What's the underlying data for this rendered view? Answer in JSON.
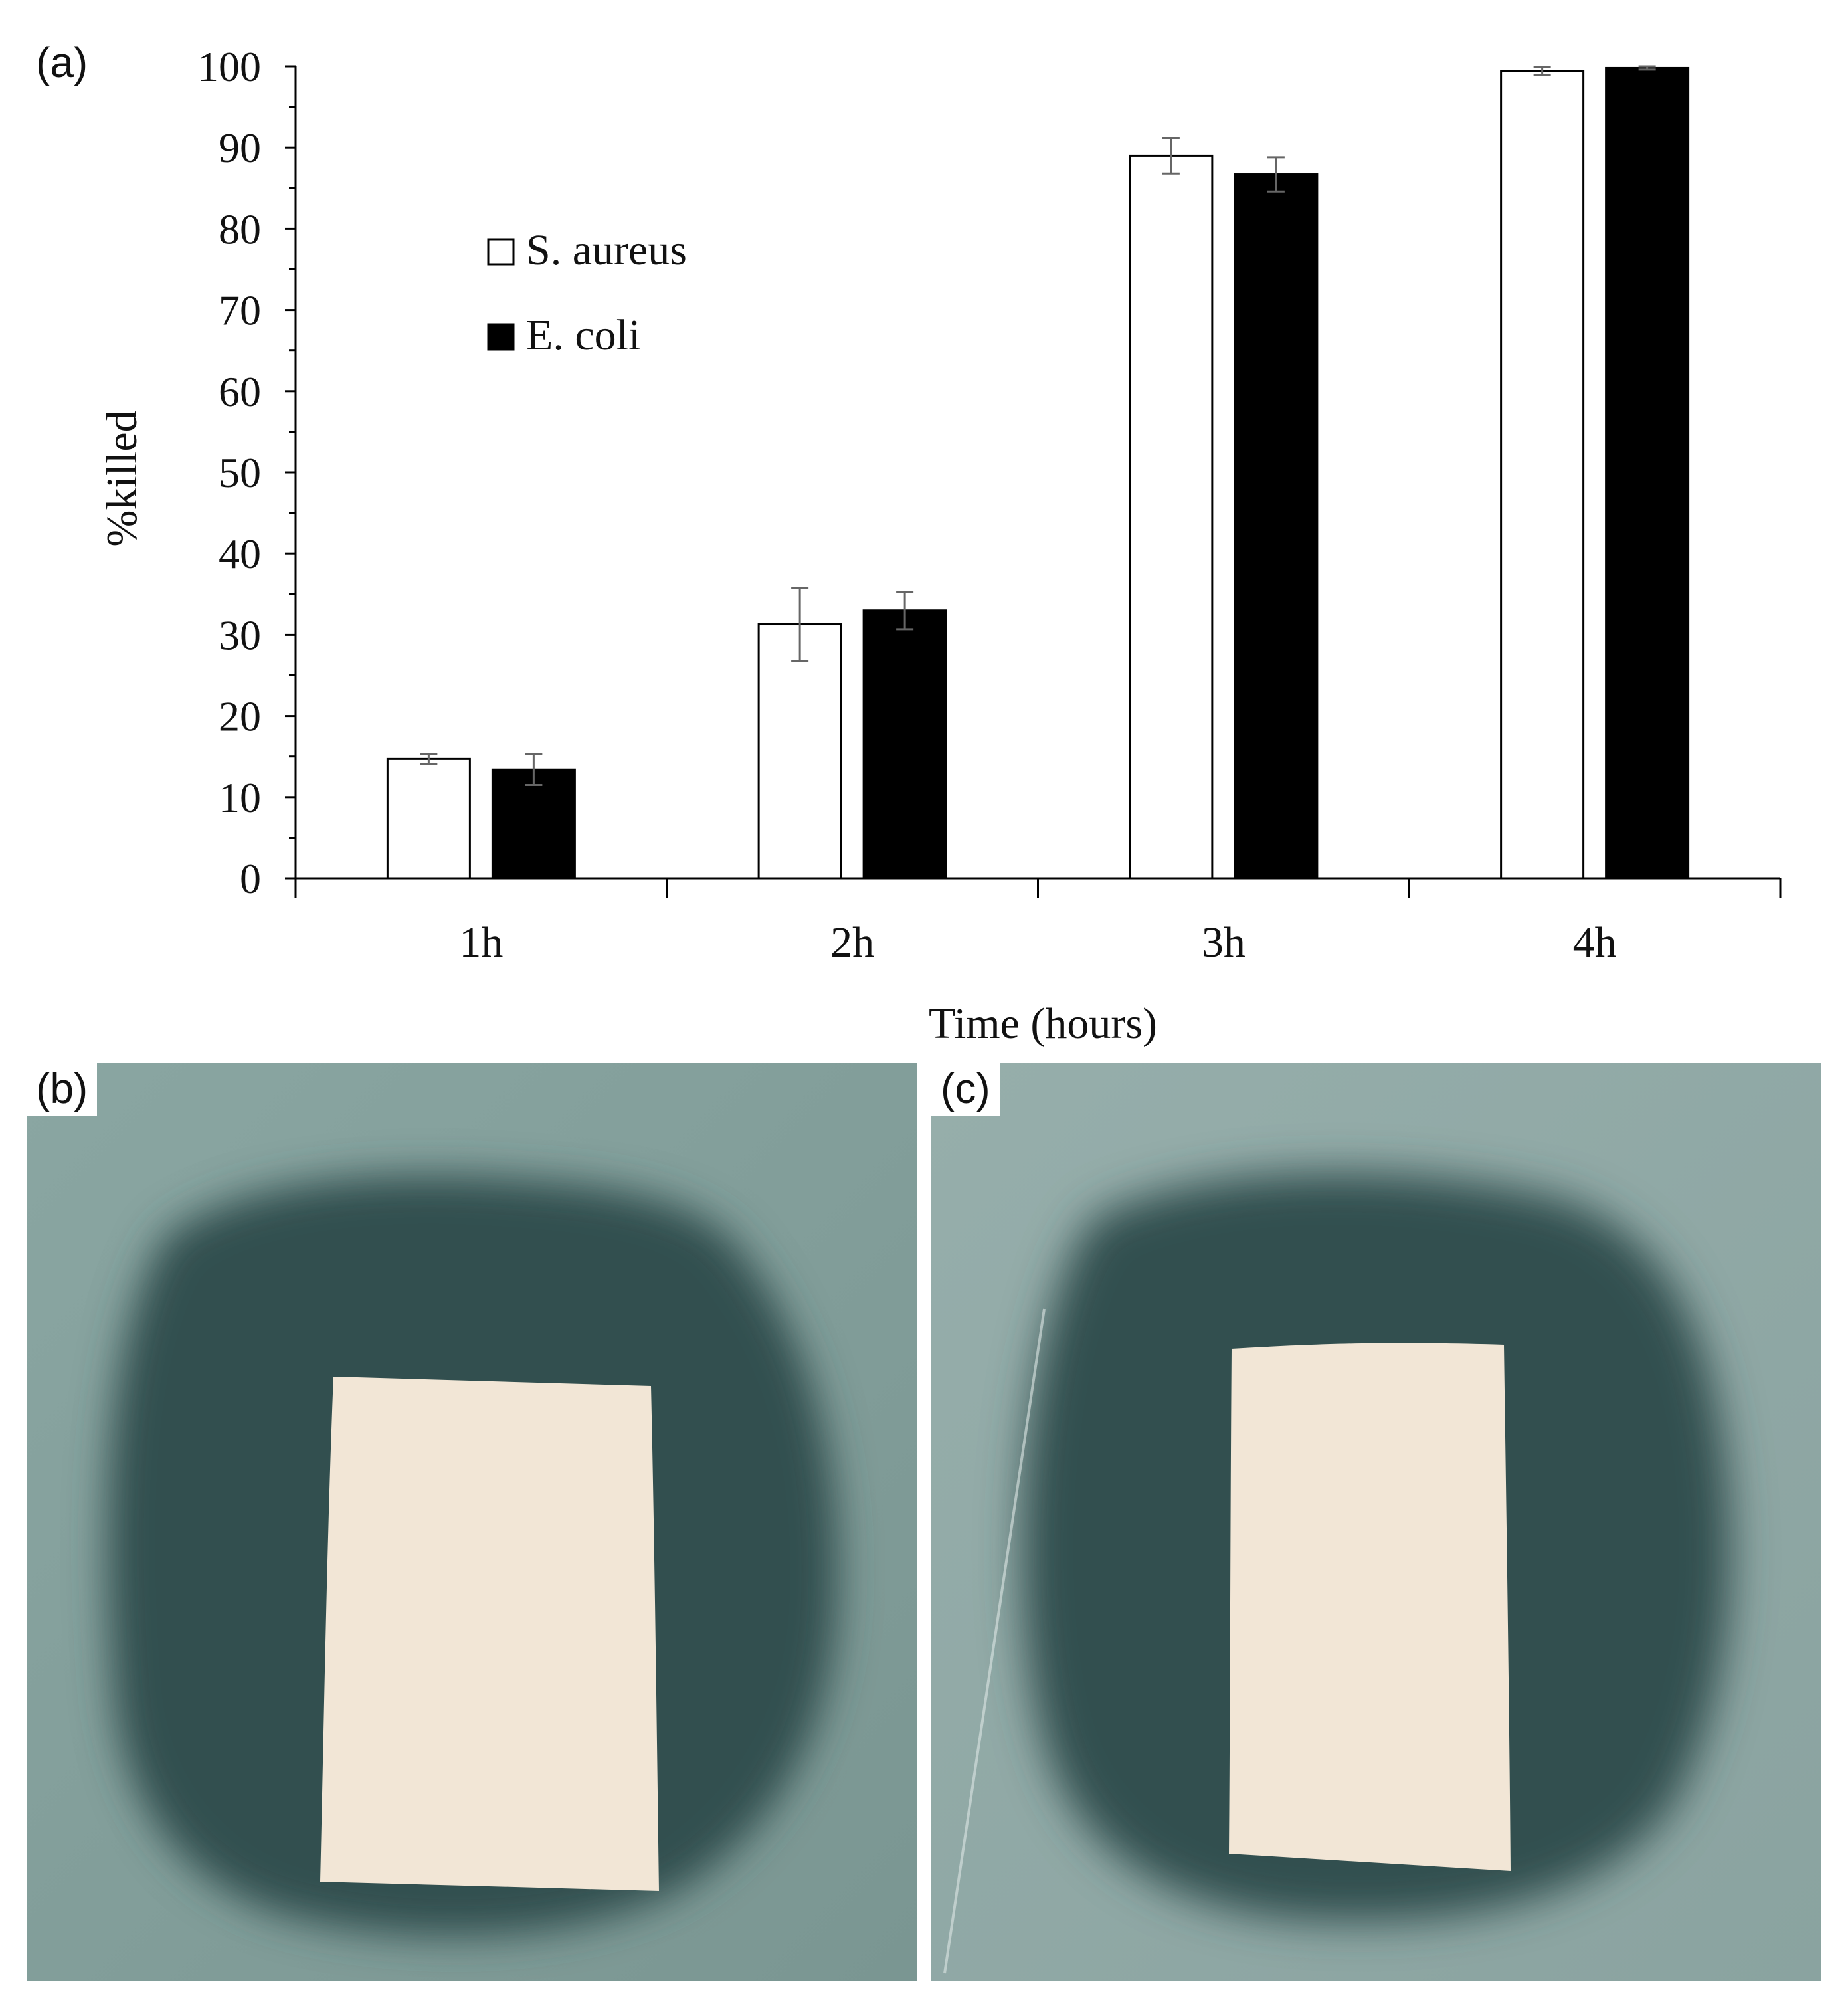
{
  "panels": {
    "a_label": "(a)",
    "b_label": "(b)",
    "c_label": "(c)"
  },
  "chart_data": {
    "type": "bar",
    "xlabel": "Time (hours)",
    "ylabel": "%killed",
    "ylim": [
      0,
      100
    ],
    "yticks": [
      0,
      10,
      20,
      30,
      40,
      50,
      60,
      70,
      80,
      90,
      100
    ],
    "categories": [
      "1h",
      "2h",
      "3h",
      "4h"
    ],
    "legend_position": "top-left",
    "series": [
      {
        "name": "S. aureus",
        "fill": "#ffffff",
        "values": [
          14.7,
          31.3,
          89.0,
          99.4
        ],
        "errors": [
          0.6,
          4.5,
          2.2,
          0.5
        ]
      },
      {
        "name": "E. coli",
        "fill": "#000000",
        "values": [
          13.4,
          33.0,
          86.7,
          99.8
        ],
        "errors": [
          1.9,
          2.3,
          2.1,
          0.2
        ]
      }
    ]
  },
  "photos": {
    "agar_color": "#7f9b98",
    "zone_color": "#32504f",
    "sample_color": "#f2e6d6"
  }
}
